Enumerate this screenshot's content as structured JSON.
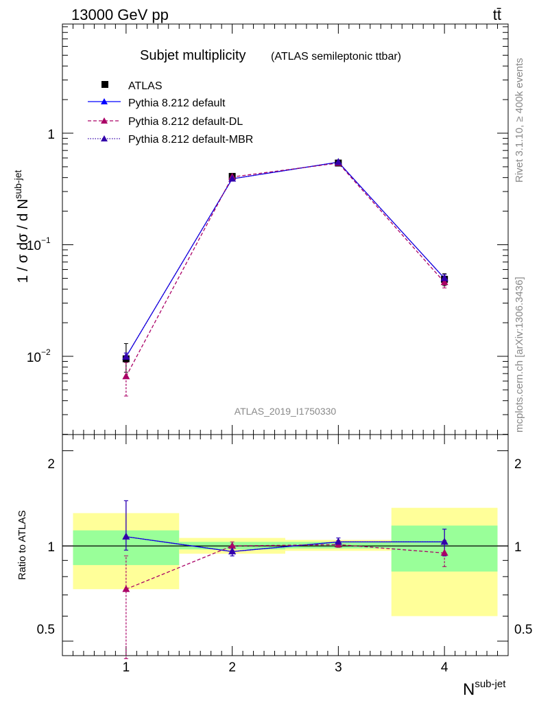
{
  "header": {
    "energy_label": "13000 GeV pp",
    "process_label": "tt̄"
  },
  "side_labels": {
    "rivet": "Rivet 3.1.10, ≥ 400k events",
    "source": "mcplots.cern.ch [arXiv:1306.3436]"
  },
  "chart_data": [
    {
      "type": "line",
      "title": "Subjet multiplicity",
      "subtitle": "(ATLAS semileptonic ttbar)",
      "analysis_id": "ATLAS_2019_I1750330",
      "ylabel": "1 / σ dσ / d N^{sub-jet}",
      "yscale": "log",
      "ylim": [
        0.0022,
        10
      ],
      "xlim": [
        0.4,
        4.6
      ],
      "y_tick_labels": [
        "10^{-2}",
        "10^{-1}",
        "1"
      ],
      "legend_position": "top-left",
      "x": [
        1,
        2,
        3,
        4
      ],
      "series": [
        {
          "name": "ATLAS",
          "marker": "square",
          "color": "#000000",
          "values": [
            0.0095,
            0.41,
            0.54,
            0.049
          ],
          "err_low": [
            0.0023,
            0.01,
            0.01,
            0.006
          ],
          "err_high": [
            0.0035,
            0.01,
            0.01,
            0.006
          ]
        },
        {
          "name": "Pythia 8.212 default",
          "marker": "triangle",
          "line": "solid",
          "color": "#0000ff",
          "values": [
            0.0099,
            0.39,
            0.55,
            0.05
          ],
          "err_low": [
            0.0008,
            0.005,
            0.005,
            0.004
          ],
          "err_high": [
            0.0008,
            0.005,
            0.005,
            0.004
          ]
        },
        {
          "name": "Pythia 8.212 default-DL",
          "marker": "triangle",
          "line": "dashed",
          "color": "#aa0066",
          "values": [
            0.0066,
            0.405,
            0.54,
            0.046
          ],
          "err_low": [
            0.0022,
            0.01,
            0.01,
            0.005
          ],
          "err_high": [
            0.0022,
            0.01,
            0.01,
            0.005
          ]
        },
        {
          "name": "Pythia 8.212 default-MBR",
          "marker": "triangle",
          "line": "dotted",
          "color": "#3300aa",
          "values": [
            0.0099,
            0.39,
            0.55,
            0.05
          ],
          "err_low": [
            0.0008,
            0.005,
            0.005,
            0.004
          ],
          "err_high": [
            0.0008,
            0.005,
            0.005,
            0.004
          ]
        }
      ]
    },
    {
      "type": "line",
      "ylabel": "Ratio to ATLAS",
      "xlabel": "N^{sub-jet}",
      "ylim": [
        0.45,
        2.25
      ],
      "xlim": [
        0.4,
        4.6
      ],
      "x_ticks": [
        1,
        2,
        3,
        4
      ],
      "y_tick_labels": [
        "0.5",
        "1",
        "2"
      ],
      "x": [
        1,
        2,
        3,
        4
      ],
      "bands": [
        {
          "x_low": [
            0.5,
            1.5,
            2.5,
            3.5
          ],
          "x_high": [
            1.5,
            2.5,
            3.5,
            4.5
          ],
          "inner_low": [
            0.87,
            0.975,
            0.982,
            0.83
          ],
          "inner_high": [
            1.12,
            1.03,
            1.03,
            1.16
          ],
          "outer_low": [
            0.73,
            0.945,
            0.965,
            0.6
          ],
          "outer_high": [
            1.27,
            1.06,
            1.045,
            1.32
          ]
        }
      ],
      "series": [
        {
          "name": "Pythia 8.212 default",
          "values": [
            1.07,
            0.96,
            1.03,
            1.03
          ],
          "err_low": [
            0.1,
            0.03,
            0.02,
            0.1
          ],
          "err_high": [
            0.32,
            0.03,
            0.03,
            0.1
          ]
        },
        {
          "name": "Pythia 8.212 default-DL",
          "values": [
            0.73,
            1.0,
            1.01,
            0.95
          ],
          "err_low": [
            0.29,
            0.03,
            0.02,
            0.09
          ],
          "err_high": [
            0.2,
            0.03,
            0.03,
            0.09
          ]
        },
        {
          "name": "Pythia 8.212 default-MBR",
          "values": [
            1.07,
            0.96,
            1.03,
            1.03
          ],
          "err_low": [
            0.1,
            0.03,
            0.02,
            0.1
          ],
          "err_high": [
            0.32,
            0.03,
            0.03,
            0.1
          ]
        }
      ]
    }
  ],
  "colors": {
    "inner_band": "#99ff99",
    "outer_band": "#ffff99"
  }
}
